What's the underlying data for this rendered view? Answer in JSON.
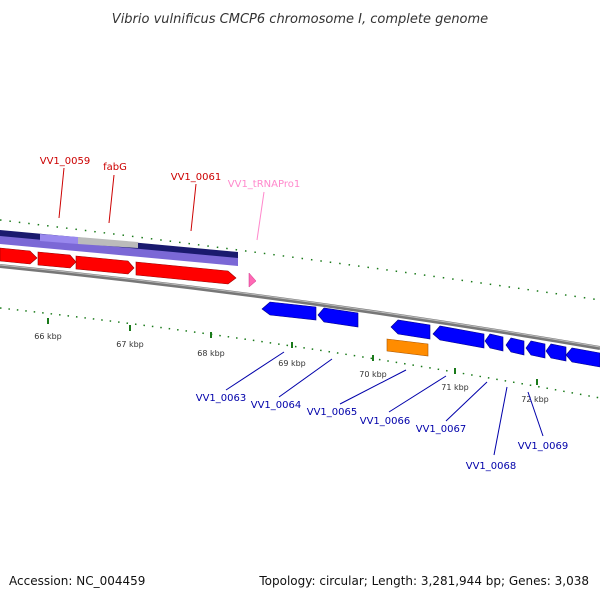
{
  "title": "Vibrio vulnificus CMCP6 chromosome I, complete genome",
  "footer": {
    "accession": "Accession: NC_004459",
    "summary": "Topology: circular; Length: 3,281,944 bp; Genes: 3,038"
  },
  "colors": {
    "forward_gene": "#ff0000",
    "reverse_gene": "#0000ff",
    "rna_gene": "#ff69b4",
    "orange_feature": "#ff8c00",
    "backbone": "#888888",
    "tick": "#1a7a1a",
    "forward_label": "#cc0000",
    "reverse_label": "#0000aa",
    "trna_label": "#ff88cc"
  },
  "tick_labels": [
    "66 kbp",
    "67 kbp",
    "68 kbp",
    "69 kbp",
    "70 kbp",
    "71 kbp",
    "72 kbp"
  ],
  "forward_genes": [
    {
      "label": "VV1_0059"
    },
    {
      "label": "fabG"
    },
    {
      "label": "VV1_0061"
    },
    {
      "label": "VV1_tRNAPro1"
    }
  ],
  "reverse_genes": [
    {
      "label": "VV1_0063"
    },
    {
      "label": "VV1_0064"
    },
    {
      "label": "VV1_0065"
    },
    {
      "label": "VV1_0066"
    },
    {
      "label": "VV1_0067"
    },
    {
      "label": "VV1_0068"
    },
    {
      "label": "VV1_0069"
    }
  ]
}
